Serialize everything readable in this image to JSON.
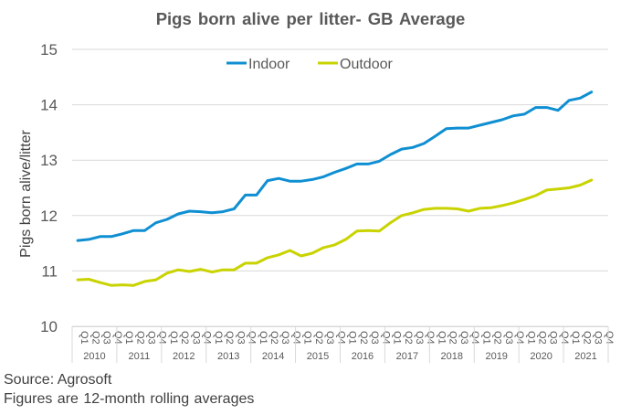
{
  "footer": {
    "source": "Source: Agrosoft",
    "note": "Figures are  12-month rolling averages"
  },
  "colors": {
    "Indoor": "#0f8fd2",
    "Outdoor": "#c9d300",
    "grid": "#d9d9d9",
    "text": "#595959"
  },
  "chart_data": {
    "type": "line",
    "title": "Pigs born alive per litter-  GB Average",
    "xlabel": "",
    "ylabel": "Pigs born alive/litter",
    "ylim": [
      10,
      15
    ],
    "yticks": [
      "10",
      "11",
      "12",
      "13",
      "14",
      "15"
    ],
    "grid": true,
    "legend": "top-center",
    "quarter_labels": [
      "Q1",
      "Q2",
      "Q3",
      "Q4"
    ],
    "years": [
      "2010",
      "2011",
      "2012",
      "2013",
      "2014",
      "2015",
      "2016",
      "2017",
      "2018",
      "2019",
      "2020",
      "2021"
    ],
    "series": [
      {
        "name": "Indoor",
        "values": [
          11.55,
          11.57,
          11.62,
          11.62,
          11.67,
          11.73,
          11.73,
          11.87,
          11.93,
          12.03,
          12.08,
          12.07,
          12.05,
          12.07,
          12.12,
          12.37,
          12.37,
          12.63,
          12.67,
          12.62,
          12.62,
          12.65,
          12.7,
          12.78,
          12.85,
          12.93,
          12.93,
          12.98,
          13.1,
          13.2,
          13.23,
          13.3,
          13.43,
          13.57,
          13.58,
          13.58,
          13.63,
          13.68,
          13.73,
          13.8,
          13.83,
          13.95,
          13.95,
          13.9,
          14.08,
          14.12,
          14.23
        ]
      },
      {
        "name": "Outdoor",
        "values": [
          10.84,
          10.85,
          10.79,
          10.74,
          10.75,
          10.74,
          10.81,
          10.84,
          10.96,
          11.02,
          10.99,
          11.03,
          10.98,
          11.02,
          11.02,
          11.14,
          11.14,
          11.24,
          11.29,
          11.37,
          11.27,
          11.32,
          11.42,
          11.47,
          11.57,
          11.72,
          11.73,
          11.72,
          11.87,
          12.0,
          12.05,
          12.11,
          12.13,
          12.13,
          12.12,
          12.08,
          12.13,
          12.14,
          12.18,
          12.23,
          12.29,
          12.36,
          12.46,
          12.48,
          12.5,
          12.55,
          12.64
        ]
      }
    ]
  }
}
